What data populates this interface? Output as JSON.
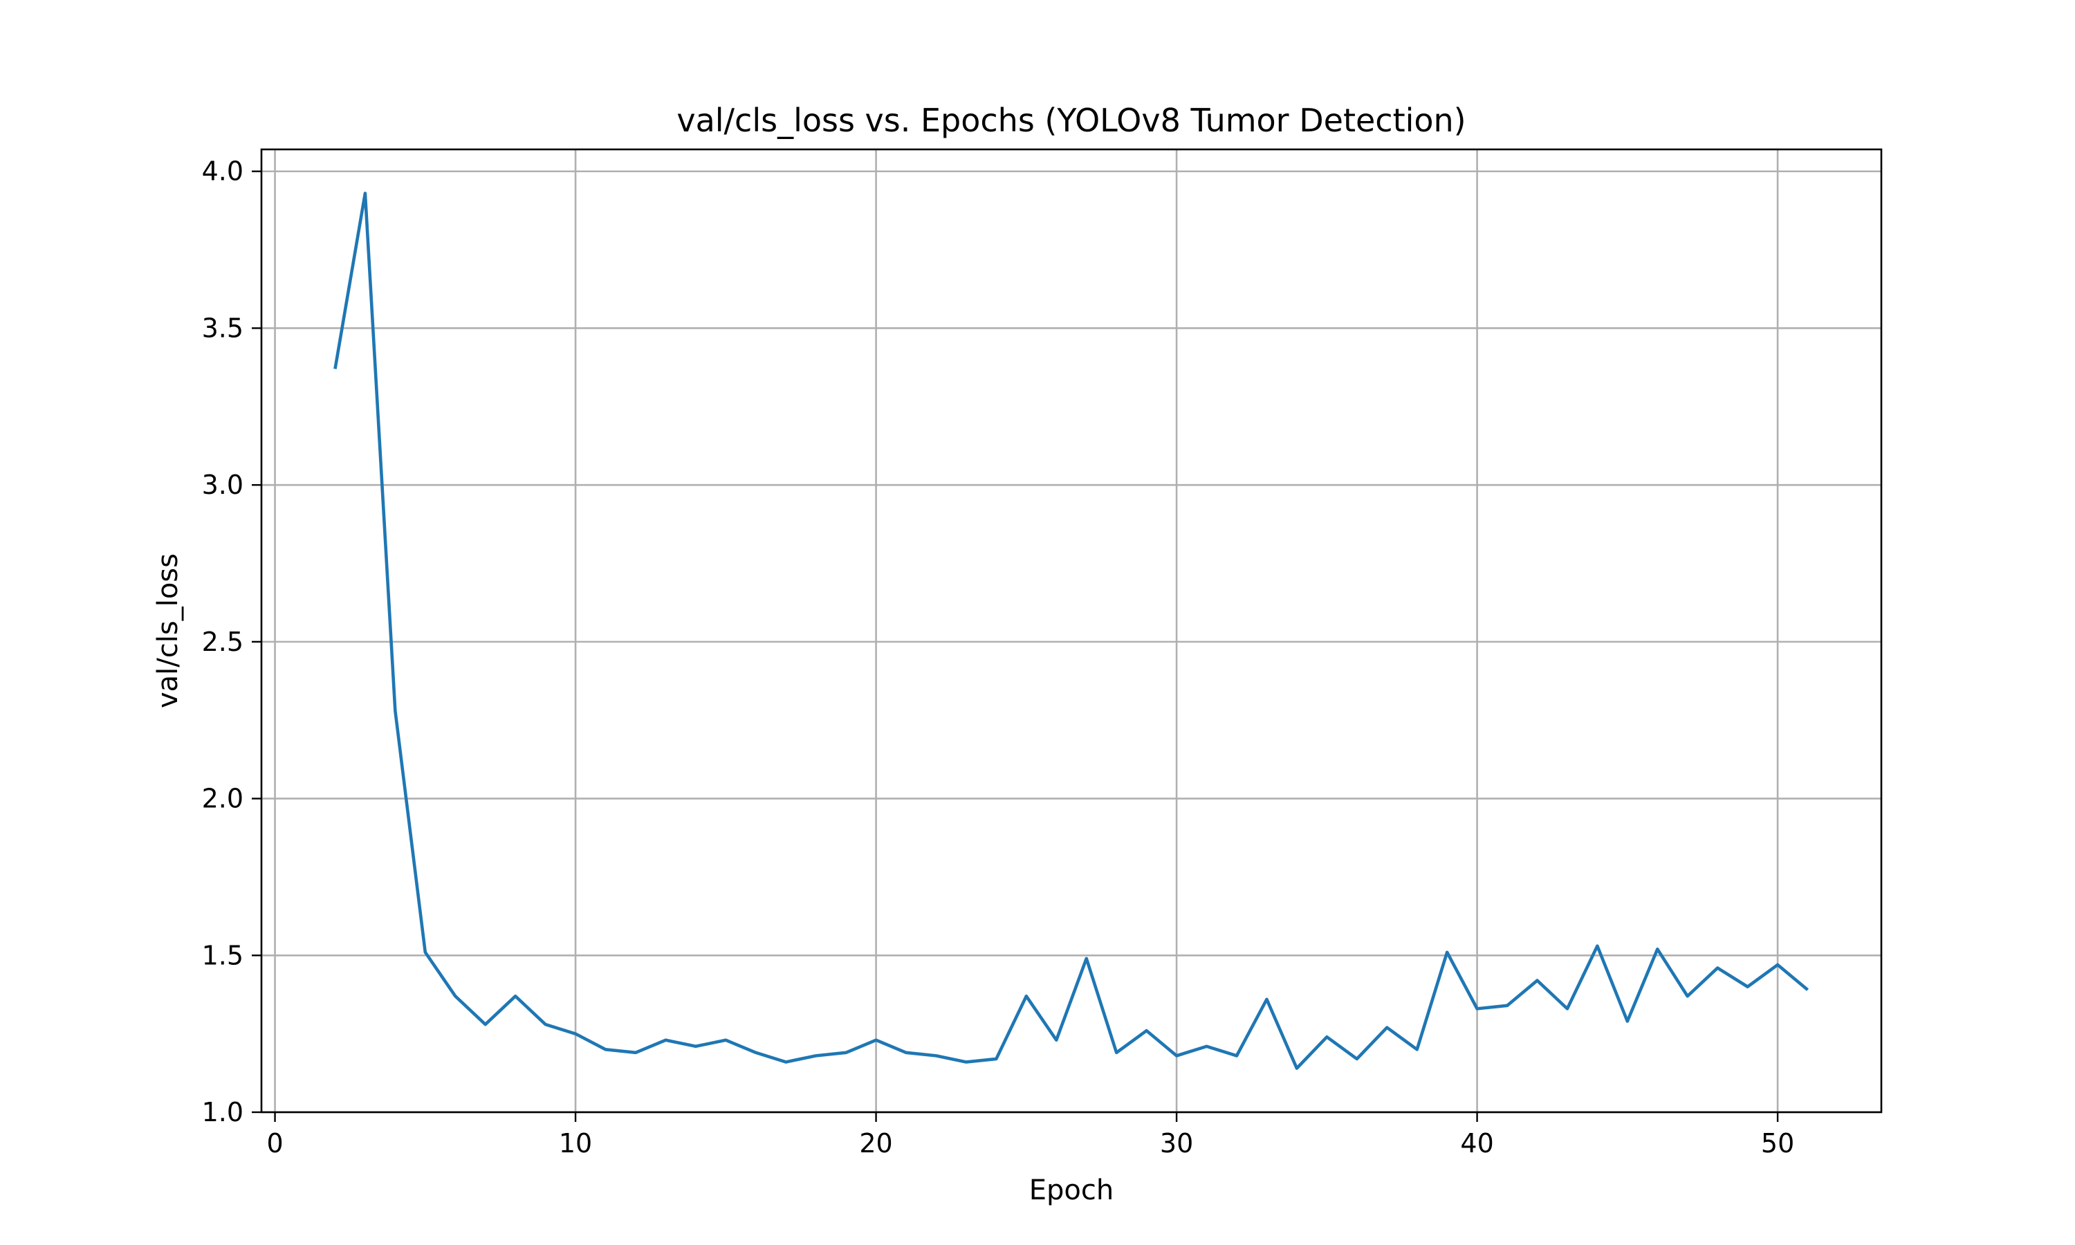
{
  "chart_data": {
    "type": "line",
    "title": "val/cls_loss vs. Epochs (YOLOv8 Tumor Detection)",
    "xlabel": "Epoch",
    "ylabel": "val/cls_loss",
    "xlim": [
      -0.45,
      53.45
    ],
    "ylim": [
      1.0,
      4.07
    ],
    "xticks": [
      0,
      10,
      20,
      30,
      40,
      50
    ],
    "yticks": [
      1.0,
      1.5,
      2.0,
      2.5,
      3.0,
      3.5,
      4.0
    ],
    "xtick_labels": [
      "0",
      "10",
      "20",
      "30",
      "40",
      "50"
    ],
    "ytick_labels": [
      "1.0",
      "1.5",
      "2.0",
      "2.5",
      "3.0",
      "3.5",
      "4.0"
    ],
    "grid": true,
    "legend": false,
    "series": [
      {
        "color": "#1f77b4",
        "x": [
          2,
          3,
          4,
          5,
          6,
          7,
          8,
          9,
          10,
          11,
          12,
          13,
          14,
          15,
          16,
          17,
          18,
          19,
          20,
          21,
          22,
          23,
          24,
          25,
          26,
          27,
          28,
          29,
          30,
          31,
          32,
          33,
          34,
          35,
          36,
          37,
          38,
          39,
          40,
          41,
          42,
          43,
          44,
          45,
          46,
          47,
          48,
          49,
          50,
          51
        ],
        "y": [
          3.37,
          3.93,
          2.28,
          1.51,
          1.37,
          1.28,
          1.37,
          1.28,
          1.25,
          1.2,
          1.19,
          1.23,
          1.21,
          1.23,
          1.19,
          1.16,
          1.18,
          1.19,
          1.23,
          1.19,
          1.18,
          1.16,
          1.17,
          1.37,
          1.23,
          1.49,
          1.19,
          1.26,
          1.18,
          1.21,
          1.18,
          1.36,
          1.14,
          1.24,
          1.17,
          1.27,
          1.2,
          1.51,
          1.33,
          1.34,
          1.42,
          1.33,
          1.53,
          1.29,
          1.52,
          1.37,
          1.46,
          1.4,
          1.47,
          1.39
        ]
      }
    ]
  }
}
